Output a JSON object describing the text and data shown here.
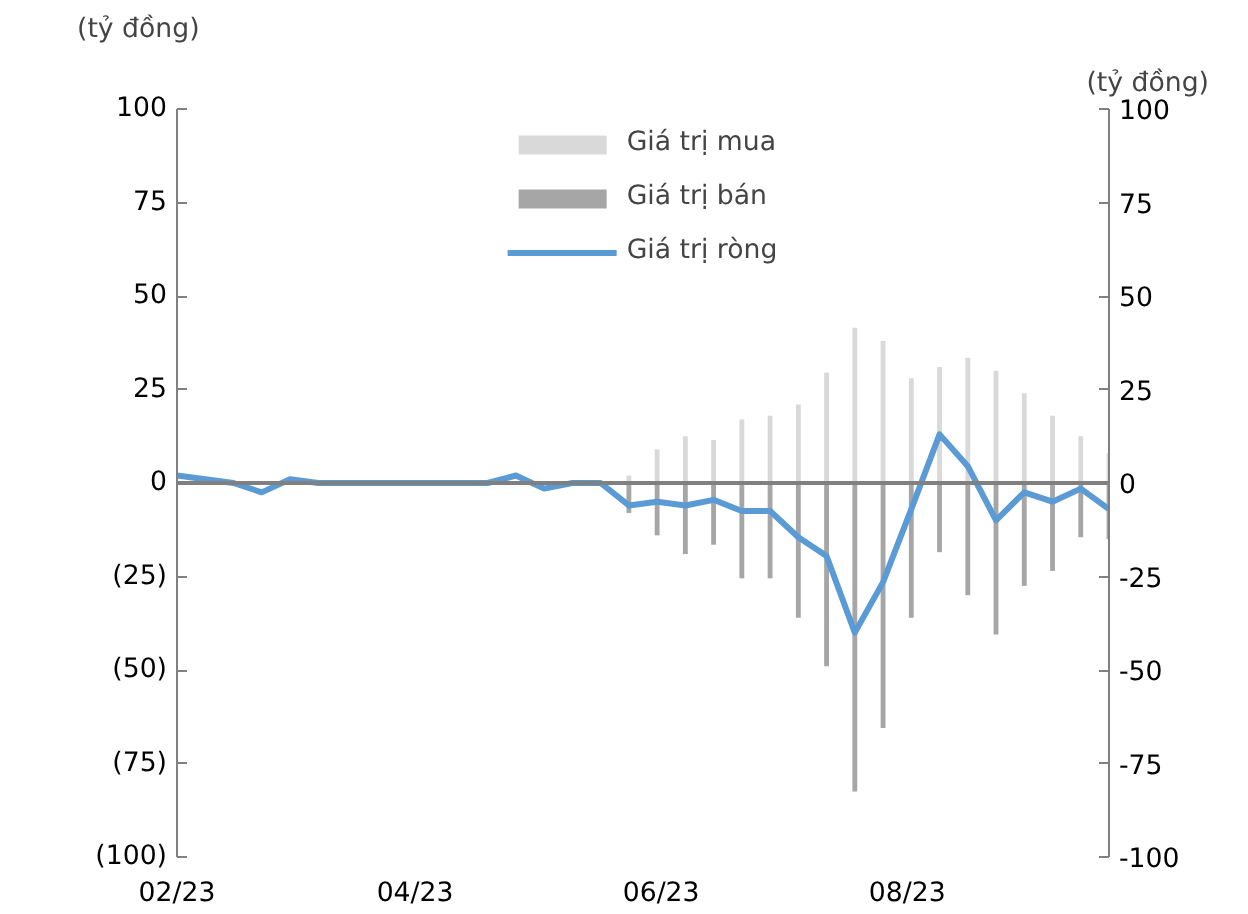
{
  "chart_data": {
    "type": "bar",
    "ylabel": "(tỷ đồng)",
    "y2label": "(tỷ đồng)",
    "x": [
      "2023-02-01",
      "2023-02-08",
      "2023-02-15",
      "2023-02-22",
      "2023-03-01",
      "2023-03-08",
      "2023-03-15",
      "2023-03-22",
      "2023-03-29",
      "2023-04-05",
      "2023-04-12",
      "2023-04-19",
      "2023-04-26",
      "2023-05-03",
      "2023-05-10",
      "2023-05-17",
      "2023-05-24",
      "2023-05-31",
      "2023-06-07",
      "2023-06-14",
      "2023-06-21",
      "2023-06-28",
      "2023-07-05",
      "2023-07-12",
      "2023-07-19",
      "2023-07-26",
      "2023-08-02",
      "2023-08-09",
      "2023-08-16",
      "2023-08-23",
      "2023-08-30",
      "2023-09-06",
      "2023-09-13",
      "2023-09-20"
    ],
    "series": [
      {
        "name": "Giá trị mua",
        "color": "#d9d9d9",
        "values": [
          null,
          null,
          null,
          null,
          null,
          null,
          null,
          null,
          null,
          null,
          null,
          null,
          null,
          null,
          null,
          null,
          2,
          9,
          12.5,
          11.5,
          17,
          18,
          21,
          29.5,
          41.5,
          38,
          28,
          31,
          33.5,
          30,
          24,
          18,
          12.5,
          8
        ]
      },
      {
        "name": "Giá trị bán",
        "color": "#a6a6a6",
        "values": [
          null,
          null,
          null,
          null,
          null,
          null,
          null,
          null,
          null,
          null,
          null,
          null,
          null,
          null,
          null,
          null,
          -8,
          -14,
          -19,
          -16.5,
          -25.5,
          -25.5,
          -36,
          -49,
          -82.5,
          -65.5,
          -36,
          -18.5,
          -30,
          -40.5,
          -27.5,
          -23.5,
          -14.5,
          -15
        ]
      },
      {
        "name": "Giá trị ròng",
        "type": "line",
        "color": "#5b9bd5",
        "values": [
          2,
          1,
          0,
          -2.5,
          1,
          0,
          0,
          0,
          0,
          0,
          0,
          0,
          2,
          -1.5,
          0,
          0,
          -6,
          -5,
          -6,
          -4.5,
          -7.5,
          -7.5,
          -14.5,
          -19.5,
          -40,
          -26.5,
          -7,
          13,
          4.5,
          -10,
          -2.5,
          -5,
          -1.5,
          -7
        ]
      }
    ],
    "xlim": [
      "2023-02-01",
      "2023-09-20"
    ],
    "xticks": [
      {
        "value": "2023-02-01",
        "label": "02/23"
      },
      {
        "value": "2023-04-01",
        "label": "04/23"
      },
      {
        "value": "2023-06-01",
        "label": "06/23"
      },
      {
        "value": "2023-08-01",
        "label": "08/23"
      }
    ],
    "ylim": [
      -100,
      100
    ],
    "yticks": [
      {
        "value": 100,
        "label": "100"
      },
      {
        "value": 75,
        "label": "75"
      },
      {
        "value": 50,
        "label": "50"
      },
      {
        "value": 25,
        "label": "25"
      },
      {
        "value": 0,
        "label": "0"
      },
      {
        "value": -25,
        "label": "(25)"
      },
      {
        "value": -50,
        "label": "(50)"
      },
      {
        "value": -75,
        "label": "(75)"
      },
      {
        "value": -100,
        "label": "(100)"
      }
    ],
    "y2lim": [
      -100,
      100
    ],
    "y2ticks": [
      100,
      75,
      50,
      25,
      0,
      -25,
      -50,
      -75,
      -100
    ],
    "stacked": true,
    "ref_lines": [
      {
        "axis": "y",
        "value": 0,
        "color": "#808080"
      }
    ],
    "legend": "top",
    "grid": false,
    "marker": "none",
    "line_style": "solid"
  }
}
